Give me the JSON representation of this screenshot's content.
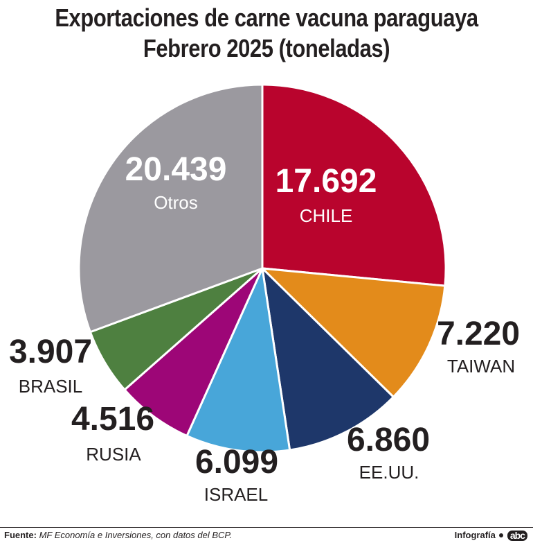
{
  "title_line1": "Exportaciones de carne vacuna paraguaya",
  "title_line2": "Febrero 2025 (toneladas)",
  "footer": {
    "source_label": "Fuente:",
    "source_text": "MF Economía e Inversiones, con datos del BCP.",
    "credit": "Infografía",
    "logo": "abc"
  },
  "chart_data": {
    "type": "pie",
    "unit": "toneladas",
    "slices": [
      {
        "label": "CHILE",
        "value": 17692,
        "display": "17.692",
        "color": "#b9042d"
      },
      {
        "label": "TAIWAN",
        "value": 7220,
        "display": "7.220",
        "color": "#e38b1b"
      },
      {
        "label": "EE.UU.",
        "value": 6860,
        "display": "6.860",
        "color": "#1e376a"
      },
      {
        "label": "ISRAEL",
        "value": 6099,
        "display": "6.099",
        "color": "#48a6d9"
      },
      {
        "label": "RUSIA",
        "value": 4516,
        "display": "4.516",
        "color": "#9d0677"
      },
      {
        "label": "BRASIL",
        "value": 3907,
        "display": "3.907",
        "color": "#4e8040"
      },
      {
        "label": "Otros",
        "value": 20439,
        "display": "20.439",
        "color": "#9b999f"
      }
    ]
  }
}
